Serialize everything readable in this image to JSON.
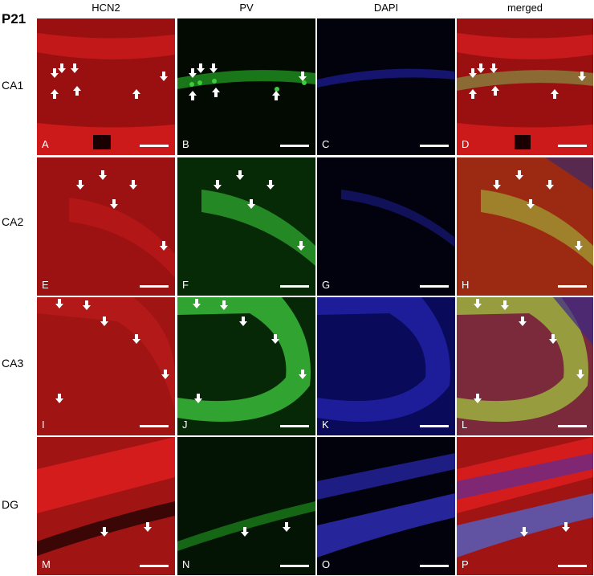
{
  "figure": {
    "age_label": "P21",
    "columns": [
      "HCN2",
      "PV",
      "DAPI",
      "merged"
    ],
    "rows": [
      {
        "label": "CA1",
        "panels": [
          "A",
          "B",
          "C",
          "D"
        ]
      },
      {
        "label": "CA2",
        "panels": [
          "E",
          "F",
          "G",
          "H"
        ]
      },
      {
        "label": "CA3",
        "panels": [
          "I",
          "J",
          "K",
          "L"
        ]
      },
      {
        "label": "DG",
        "panels": [
          "M",
          "N",
          "O",
          "P"
        ]
      }
    ]
  },
  "colors": {
    "hcn2": "#c4141a",
    "pv": "#1e8a1e",
    "dapi": "#15158a",
    "arrow": "#ffffff"
  }
}
